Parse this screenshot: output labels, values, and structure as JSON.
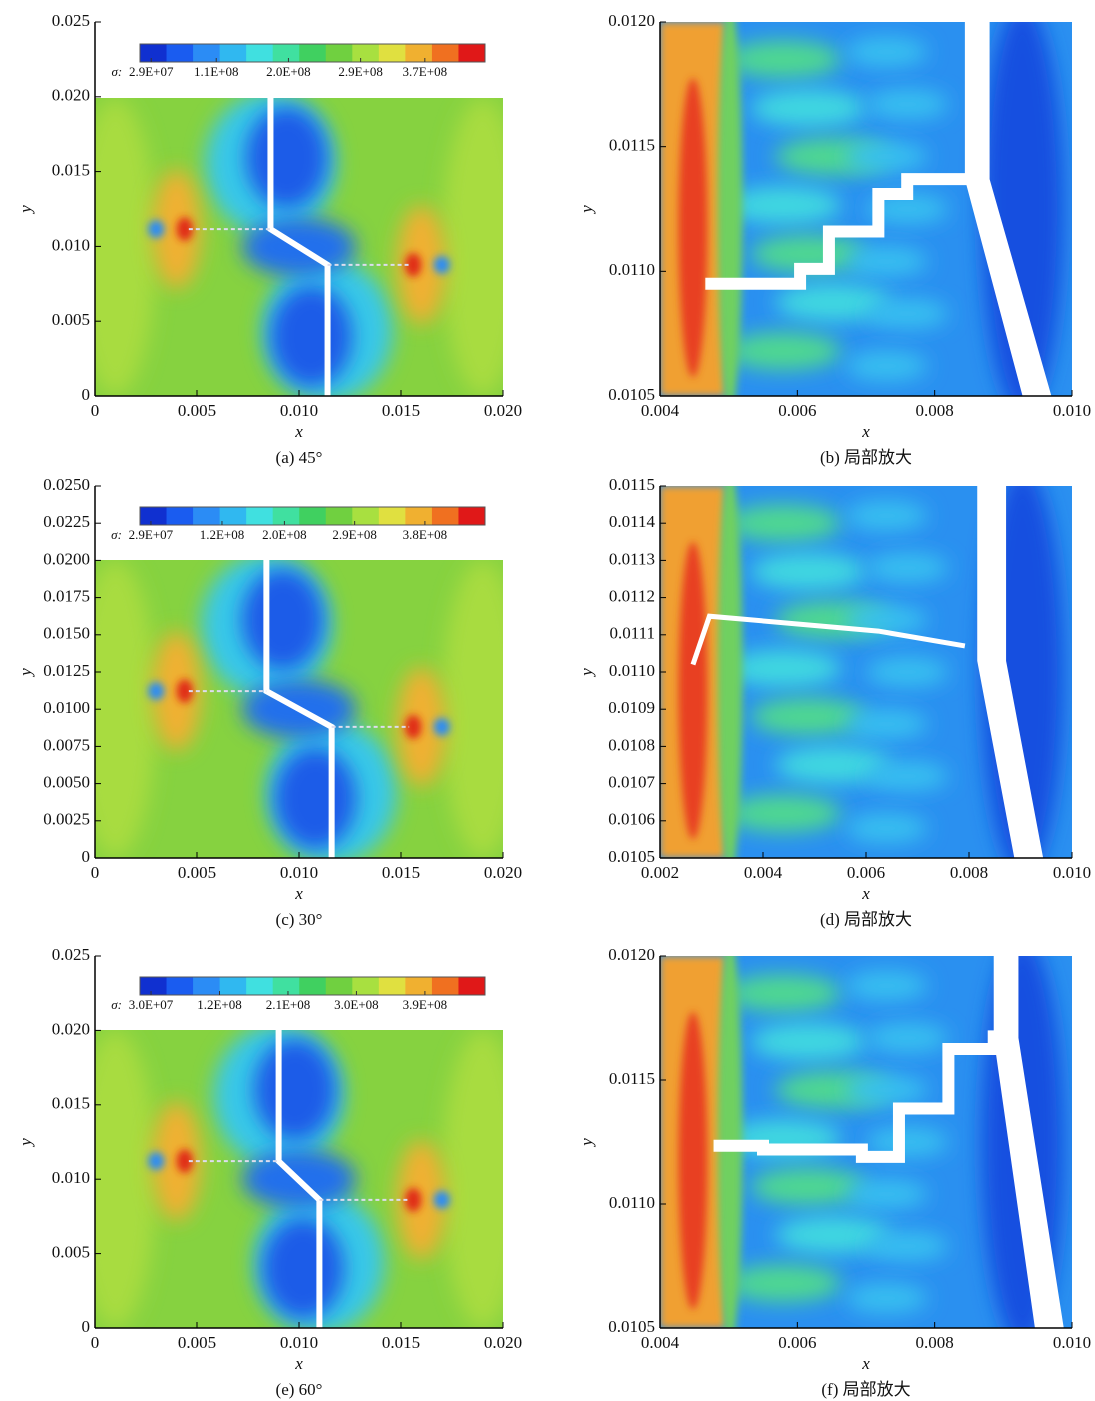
{
  "chart_data": [
    {
      "type": "contour",
      "caption": "(a) 45°",
      "xlabel": "x",
      "ylabel": "y",
      "xlim": [
        0,
        0.02
      ],
      "xticks": [
        0,
        0.005,
        {
          "value": 0.01,
          "label": "0.010"
        },
        0.015,
        {
          "value": 0.02,
          "label": "0.020"
        }
      ],
      "ylim": [
        0,
        0.025
      ],
      "yticks": [
        0,
        0.005,
        {
          "value": 0.01,
          "label": "0.010"
        },
        0.015,
        {
          "value": 0.02,
          "label": "0.020"
        },
        0.025
      ],
      "colorbar": {
        "label": "σ:",
        "clim": [
          15000000,
          445000000
        ],
        "ticks": [
          {
            "value": 29000000,
            "label": "2.9E+07"
          },
          {
            "value": 110000000,
            "label": "1.1E+08"
          },
          {
            "value": 200000000,
            "label": "2.0E+08"
          },
          {
            "value": 290000000,
            "label": "2.9E+08"
          },
          {
            "value": 370000000,
            "label": "3.7E+08"
          }
        ],
        "colors": [
          "#1030d0",
          "#1a5cf0",
          "#2b8cf5",
          "#30b8f0",
          "#40e0e0",
          "#40e0a0",
          "#40d060",
          "#70d040",
          "#a8e040",
          "#e0e040",
          "#f0b030",
          "#f07020",
          "#e01818"
        ]
      }
    },
    {
      "type": "contour",
      "caption": "(b) 局部放大",
      "xlabel": "x",
      "ylabel": "y",
      "xlim": [
        0.004,
        0.01
      ],
      "xticks": [
        0.004,
        0.006,
        0.008,
        {
          "value": 0.01,
          "label": "0.010"
        }
      ],
      "ylim": [
        0.0105,
        0.012
      ],
      "yticks": [
        0.0105,
        {
          "value": 0.011,
          "label": "0.0110"
        },
        0.0115,
        {
          "value": 0.012,
          "label": "0.0120"
        }
      ]
    },
    {
      "type": "contour",
      "caption": "(c) 30°",
      "xlabel": "x",
      "ylabel": "y",
      "xlim": [
        0,
        0.02
      ],
      "xticks": [
        0,
        0.005,
        {
          "value": 0.01,
          "label": "0.010"
        },
        0.015,
        {
          "value": 0.02,
          "label": "0.020"
        }
      ],
      "ylim": [
        0,
        0.025
      ],
      "yticks": [
        0,
        0.0025,
        {
          "value": 0.005,
          "label": "0.0050"
        },
        0.0075,
        {
          "value": 0.01,
          "label": "0.0100"
        },
        0.0125,
        {
          "value": 0.015,
          "label": "0.0150"
        },
        0.0175,
        {
          "value": 0.02,
          "label": "0.0200"
        },
        0.0225,
        {
          "value": 0.025,
          "label": "0.0250"
        }
      ],
      "colorbar": {
        "label": "σ:",
        "clim": [
          15000000,
          457000000
        ],
        "ticks": [
          {
            "value": 29000000,
            "label": "2.9E+07"
          },
          {
            "value": 120000000,
            "label": "1.2E+08"
          },
          {
            "value": 200000000,
            "label": "2.0E+08"
          },
          {
            "value": 290000000,
            "label": "2.9E+08"
          },
          {
            "value": 380000000,
            "label": "3.8E+08"
          }
        ],
        "colors": [
          "#1030d0",
          "#1a5cf0",
          "#2b8cf5",
          "#30b8f0",
          "#40e0e0",
          "#40e0a0",
          "#40d060",
          "#70d040",
          "#a8e040",
          "#e0e040",
          "#f0b030",
          "#f07020",
          "#e01818"
        ]
      }
    },
    {
      "type": "contour",
      "caption": "(d) 局部放大",
      "xlabel": "x",
      "ylabel": "y",
      "xlim": [
        0.002,
        0.01
      ],
      "xticks": [
        0.002,
        0.004,
        0.006,
        0.008,
        {
          "value": 0.01,
          "label": "0.010"
        }
      ],
      "ylim": [
        0.0105,
        0.0115
      ],
      "yticks": [
        0.0105,
        0.0106,
        0.0107,
        0.0108,
        0.0109,
        {
          "value": 0.011,
          "label": "0.0110"
        },
        0.0111,
        0.0112,
        0.0113,
        0.0114,
        0.0115
      ]
    },
    {
      "type": "contour",
      "caption": "(e) 60°",
      "xlabel": "x",
      "ylabel": "y",
      "xlim": [
        0,
        0.02
      ],
      "xticks": [
        0,
        0.005,
        {
          "value": 0.01,
          "label": "0.010"
        },
        0.015,
        {
          "value": 0.02,
          "label": "0.020"
        }
      ],
      "ylim": [
        0,
        0.025
      ],
      "yticks": [
        0,
        0.005,
        {
          "value": 0.01,
          "label": "0.010"
        },
        0.015,
        {
          "value": 0.02,
          "label": "0.020"
        },
        0.025
      ],
      "colorbar": {
        "label": "σ:",
        "clim": [
          15500000,
          469000000
        ],
        "ticks": [
          {
            "value": 30000000,
            "label": "3.0E+07"
          },
          {
            "value": 120000000,
            "label": "1.2E+08"
          },
          {
            "value": 210000000,
            "label": "2.1E+08"
          },
          {
            "value": 300000000,
            "label": "3.0E+08"
          },
          {
            "value": 390000000,
            "label": "3.9E+08"
          }
        ],
        "colors": [
          "#1030d0",
          "#1a5cf0",
          "#2b8cf5",
          "#30b8f0",
          "#40e0e0",
          "#40e0a0",
          "#40d060",
          "#70d040",
          "#a8e040",
          "#e0e040",
          "#f0b030",
          "#f07020",
          "#e01818"
        ]
      }
    },
    {
      "type": "contour",
      "caption": "(f) 局部放大",
      "xlabel": "x",
      "ylabel": "y",
      "xlim": [
        0.004,
        0.01
      ],
      "xticks": [
        0.004,
        0.006,
        0.008,
        {
          "value": 0.01,
          "label": "0.010"
        }
      ],
      "ylim": [
        0.0105,
        0.012
      ],
      "yticks": [
        0.0105,
        {
          "value": 0.011,
          "label": "0.0110"
        },
        0.0115,
        {
          "value": 0.012,
          "label": "0.0120"
        }
      ]
    }
  ]
}
